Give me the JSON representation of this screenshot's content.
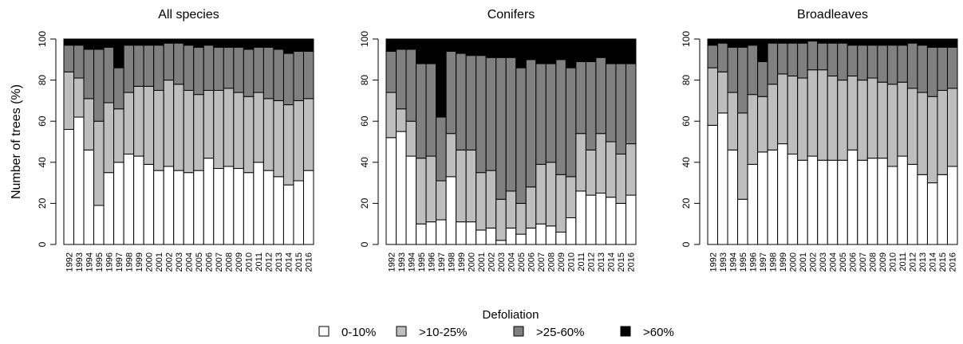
{
  "chart_data": [
    {
      "type": "bar",
      "stacked": true,
      "title": "All species",
      "ylabel": "Number of trees (%)",
      "legend_title": "Defoliation",
      "categories": [
        "1992",
        "1993",
        "1994",
        "1995",
        "1996",
        "1997",
        "1998",
        "1999",
        "2000",
        "2001",
        "2002",
        "2003",
        "2004",
        "2005",
        "2006",
        "2007",
        "2008",
        "2009",
        "2010",
        "2011",
        "2012",
        "2013",
        "2014",
        "2015",
        "2016"
      ],
      "ylim": [
        0,
        100
      ],
      "yticks": [
        0,
        20,
        40,
        60,
        80,
        100
      ],
      "series": [
        {
          "name": "0-10%",
          "color": "#ffffff",
          "values": [
            56,
            62,
            46,
            19,
            35,
            40,
            44,
            43,
            39,
            36,
            38,
            36,
            35,
            36,
            42,
            37,
            38,
            37,
            35,
            40,
            36,
            33,
            29,
            31,
            36
          ]
        },
        {
          "name": ">10-25%",
          "color": "#bebebe",
          "values": [
            28,
            19,
            25,
            41,
            34,
            26,
            30,
            34,
            38,
            39,
            42,
            42,
            40,
            37,
            33,
            38,
            38,
            37,
            37,
            34,
            35,
            37,
            39,
            39,
            35
          ]
        },
        {
          "name": ">25-60%",
          "color": "#808080",
          "values": [
            13,
            16,
            24,
            35,
            27,
            20,
            23,
            20,
            20,
            22,
            18,
            20,
            22,
            23,
            22,
            21,
            20,
            22,
            23,
            22,
            25,
            25,
            25,
            24,
            23
          ]
        },
        {
          "name": ">60%",
          "color": "#000000",
          "values": [
            3,
            3,
            5,
            5,
            4,
            14,
            3,
            3,
            3,
            3,
            2,
            2,
            3,
            4,
            3,
            4,
            4,
            4,
            5,
            4,
            4,
            5,
            7,
            6,
            6
          ]
        }
      ]
    },
    {
      "type": "bar",
      "stacked": true,
      "title": "Conifers",
      "categories": [
        "1992",
        "1993",
        "1994",
        "1995",
        "1996",
        "1997",
        "1998",
        "1999",
        "2000",
        "2001",
        "2002",
        "2003",
        "2004",
        "2005",
        "2006",
        "2007",
        "2008",
        "2009",
        "2010",
        "2011",
        "2012",
        "2013",
        "2014",
        "2015",
        "2016"
      ],
      "ylim": [
        0,
        100
      ],
      "yticks": [
        0,
        20,
        40,
        60,
        80,
        100
      ],
      "series": [
        {
          "color": "#ffffff",
          "values": [
            52,
            55,
            43,
            10,
            11,
            12,
            33,
            11,
            11,
            7,
            8,
            2,
            8,
            5,
            8,
            10,
            9,
            6,
            13,
            26,
            24,
            25,
            23,
            20,
            24
          ]
        },
        {
          "color": "#bebebe",
          "values": [
            22,
            11,
            17,
            32,
            32,
            19,
            21,
            35,
            35,
            28,
            28,
            20,
            18,
            15,
            20,
            29,
            31,
            28,
            20,
            28,
            22,
            29,
            27,
            24,
            25
          ]
        },
        {
          "color": "#808080",
          "values": [
            20,
            29,
            35,
            46,
            45,
            31,
            40,
            47,
            46,
            57,
            55,
            69,
            65,
            66,
            62,
            49,
            48,
            56,
            53,
            35,
            43,
            37,
            38,
            44,
            39
          ]
        },
        {
          "color": "#000000",
          "values": [
            6,
            5,
            5,
            12,
            12,
            38,
            6,
            7,
            8,
            8,
            9,
            9,
            9,
            14,
            10,
            12,
            12,
            10,
            14,
            11,
            11,
            9,
            12,
            12,
            12
          ]
        }
      ]
    },
    {
      "type": "bar",
      "stacked": true,
      "title": "Broadleaves",
      "categories": [
        "1992",
        "1993",
        "1994",
        "1995",
        "1996",
        "1997",
        "1998",
        "1999",
        "2000",
        "2001",
        "2002",
        "2003",
        "2004",
        "2005",
        "2006",
        "2007",
        "2008",
        "2009",
        "2010",
        "2011",
        "2012",
        "2013",
        "2014",
        "2015",
        "2016"
      ],
      "ylim": [
        0,
        100
      ],
      "yticks": [
        0,
        20,
        40,
        60,
        80,
        100
      ],
      "series": [
        {
          "color": "#ffffff",
          "values": [
            58,
            64,
            46,
            22,
            39,
            45,
            46,
            49,
            44,
            41,
            43,
            41,
            41,
            41,
            46,
            41,
            42,
            42,
            38,
            43,
            39,
            34,
            30,
            34,
            38
          ]
        },
        {
          "color": "#bebebe",
          "values": [
            28,
            20,
            28,
            42,
            34,
            27,
            32,
            34,
            38,
            40,
            42,
            44,
            41,
            39,
            36,
            39,
            39,
            37,
            40,
            36,
            37,
            40,
            42,
            41,
            38
          ]
        },
        {
          "color": "#808080",
          "values": [
            11,
            14,
            22,
            32,
            24,
            17,
            20,
            15,
            16,
            17,
            14,
            13,
            16,
            18,
            15,
            17,
            16,
            18,
            19,
            18,
            22,
            23,
            24,
            21,
            20
          ]
        },
        {
          "color": "#000000",
          "values": [
            3,
            2,
            4,
            4,
            3,
            11,
            2,
            2,
            2,
            2,
            1,
            2,
            2,
            2,
            3,
            3,
            3,
            3,
            3,
            3,
            2,
            3,
            4,
            4,
            4
          ]
        }
      ]
    }
  ]
}
